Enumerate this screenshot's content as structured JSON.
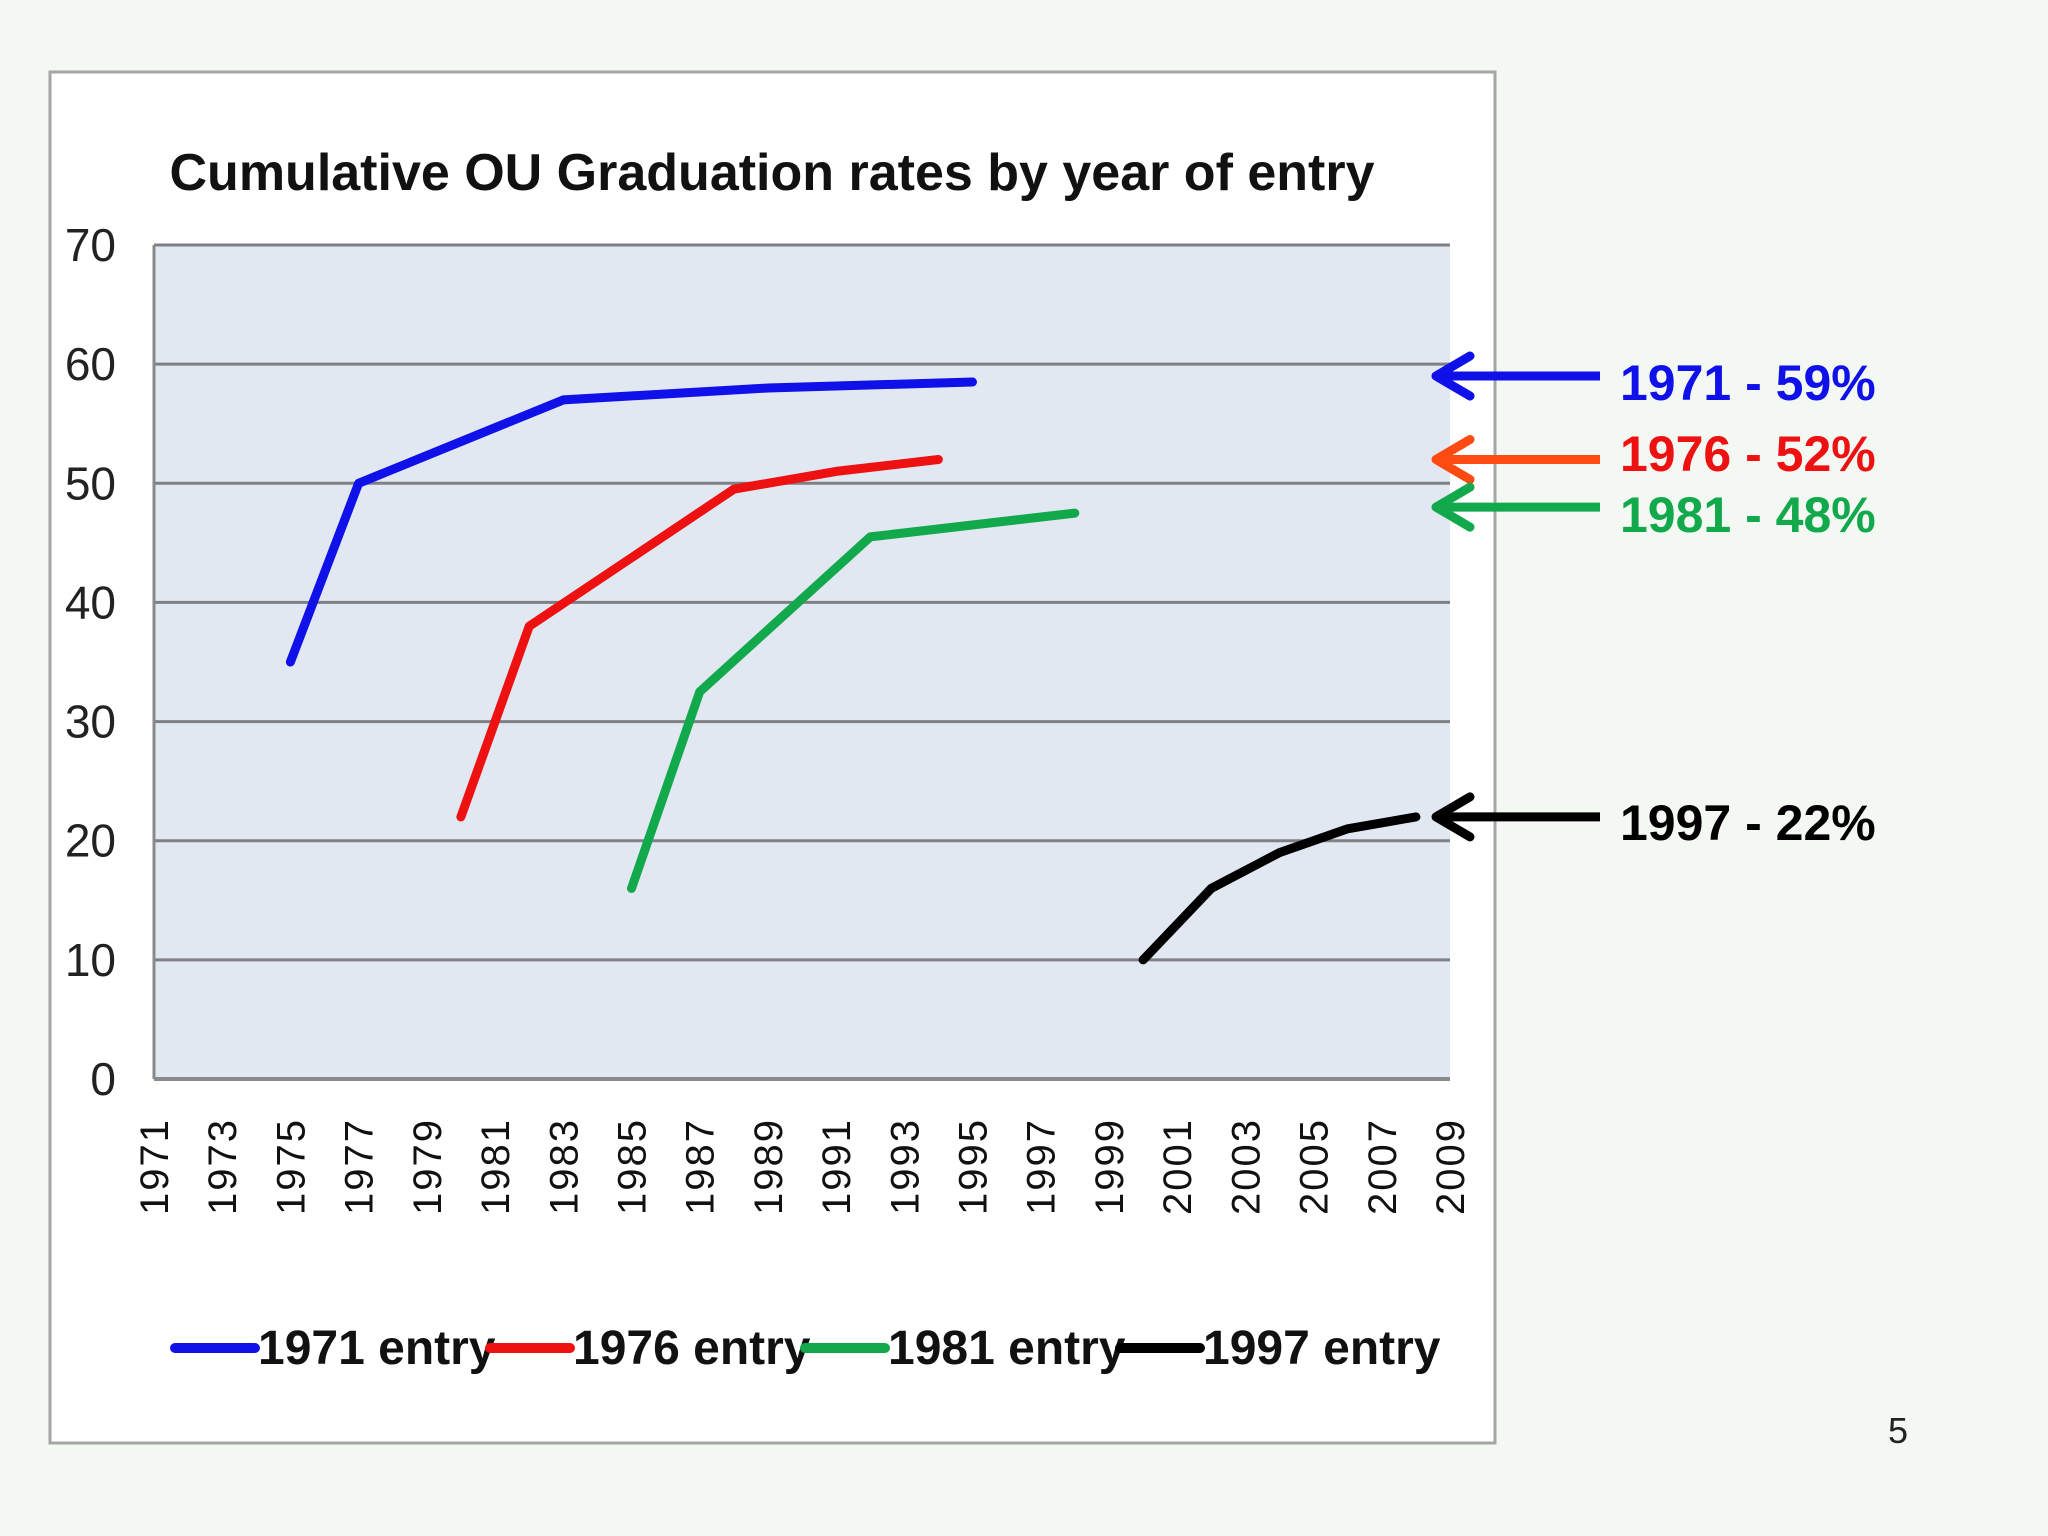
{
  "page_number": "5",
  "chart_data": {
    "type": "line",
    "title": "Cumulative OU Graduation rates by year of entry",
    "xlabel": "",
    "ylabel": "",
    "ylim": [
      0,
      70
    ],
    "yticks": [
      0,
      10,
      20,
      30,
      40,
      50,
      60,
      70
    ],
    "xlim": [
      1971,
      2009
    ],
    "xtick_labels": [
      "1971",
      "1973",
      "1975",
      "1977",
      "1979",
      "1981",
      "1983",
      "1985",
      "1987",
      "1989",
      "1991",
      "1993",
      "1995",
      "1997",
      "1999",
      "2001",
      "2003",
      "2005",
      "2007",
      "2009"
    ],
    "grid": true,
    "legend_position": "bottom",
    "series": [
      {
        "name": "1971 entry",
        "color": "#1010e8",
        "points": [
          [
            1975,
            35
          ],
          [
            1977,
            50
          ],
          [
            1983,
            57
          ],
          [
            1989,
            58
          ],
          [
            1995,
            58.5
          ]
        ]
      },
      {
        "name": "1976 entry",
        "color": "#ee1111",
        "points": [
          [
            1980,
            22
          ],
          [
            1982,
            38
          ],
          [
            1988,
            49.5
          ],
          [
            1991,
            51
          ],
          [
            1994,
            52
          ]
        ]
      },
      {
        "name": "1981 entry",
        "color": "#12a84c",
        "points": [
          [
            1985,
            16
          ],
          [
            1987,
            32.5
          ],
          [
            1992,
            45.5
          ],
          [
            1998,
            47.5
          ]
        ]
      },
      {
        "name": "1997 entry",
        "color": "#000000",
        "points": [
          [
            2000,
            10
          ],
          [
            2002,
            16
          ],
          [
            2004,
            19
          ],
          [
            2006,
            21
          ],
          [
            2008,
            22
          ]
        ]
      }
    ],
    "annotations": [
      {
        "label": "1971 - 59%",
        "value": 59,
        "color": "#1010e8",
        "arrow_color": "#1010e8"
      },
      {
        "label": "1976 - 52%",
        "value": 52,
        "color": "#ee1111",
        "arrow_color": "#ff4a12"
      },
      {
        "label": "1981 - 48%",
        "value": 48,
        "color": "#12a84c",
        "arrow_color": "#12a84c"
      },
      {
        "label": "1997 - 22%",
        "value": 22,
        "color": "#000000",
        "arrow_color": "#000000"
      }
    ]
  }
}
